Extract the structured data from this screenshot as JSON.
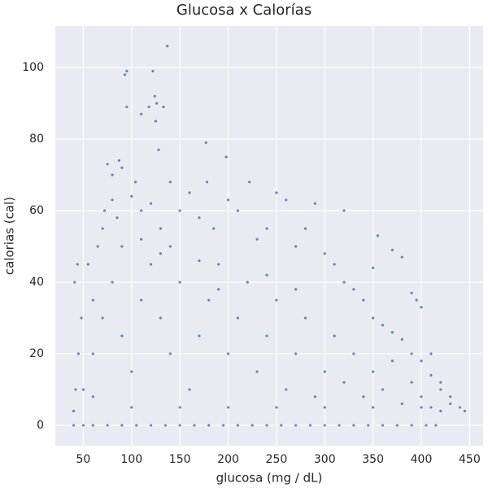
{
  "chart_data": {
    "type": "scatter",
    "title": "Glucosa x Calorías",
    "x_label": "glucosa (mg / dL)",
    "y_label": "calorias (cal)",
    "color": "#4c72b0",
    "grid": true,
    "xlim": [
      21,
      464
    ],
    "ylim": [
      -5.7,
      111.6
    ],
    "xticks": [
      50,
      100,
      150,
      200,
      250,
      300,
      350,
      400,
      450
    ],
    "yticks": [
      0,
      20,
      40,
      60,
      80,
      100
    ],
    "x": [
      40,
      50,
      60,
      75,
      90,
      105,
      120,
      135,
      150,
      165,
      180,
      195,
      210,
      225,
      240,
      255,
      270,
      285,
      300,
      315,
      330,
      345,
      360,
      375,
      390,
      405,
      415,
      93,
      95,
      122,
      137,
      95,
      110,
      118,
      124,
      126,
      133,
      125,
      128,
      177,
      198,
      87,
      90,
      75,
      80,
      104,
      140,
      178,
      222,
      250,
      260,
      290,
      320,
      355,
      370,
      380,
      350,
      390,
      395,
      400,
      410,
      420,
      430,
      445,
      440,
      40,
      42,
      45,
      48,
      41,
      44,
      55,
      60,
      65,
      70,
      72,
      80,
      85,
      100,
      110,
      120,
      130,
      150,
      160,
      170,
      185,
      200,
      210,
      230,
      240,
      270,
      280,
      300,
      310,
      320,
      330,
      340,
      350,
      360,
      370,
      380,
      390,
      400,
      410,
      420,
      430,
      50,
      60,
      70,
      80,
      90,
      100,
      110,
      120,
      130,
      140,
      150,
      160,
      170,
      180,
      190,
      200,
      210,
      220,
      230,
      240,
      250,
      260,
      270,
      280,
      290,
      300,
      310,
      320,
      330,
      340,
      350,
      360,
      370,
      380,
      390,
      400,
      410,
      420,
      100,
      150,
      200,
      250,
      300,
      350,
      400,
      60,
      90,
      130,
      170,
      110,
      140,
      190,
      240,
      270
    ],
    "values": [
      0,
      0,
      0,
      0,
      0,
      0,
      0,
      0,
      0,
      0,
      0,
      0,
      0,
      0,
      0,
      0,
      0,
      0,
      0,
      0,
      0,
      0,
      0,
      0,
      0,
      0,
      0,
      98,
      99,
      99,
      106,
      89,
      87,
      89,
      92,
      90,
      89,
      85,
      77,
      79,
      75,
      74,
      72,
      73,
      70,
      68,
      68,
      68,
      68,
      65,
      63,
      62,
      60,
      53,
      49,
      47,
      44,
      37,
      35,
      33,
      20,
      12,
      8,
      4,
      5,
      4,
      10,
      20,
      30,
      40,
      45,
      45,
      35,
      50,
      55,
      60,
      63,
      58,
      64,
      60,
      62,
      55,
      60,
      65,
      58,
      55,
      63,
      60,
      52,
      55,
      50,
      55,
      48,
      45,
      40,
      38,
      35,
      30,
      28,
      26,
      24,
      20,
      18,
      14,
      10,
      6,
      10,
      20,
      30,
      40,
      25,
      15,
      35,
      45,
      30,
      20,
      40,
      10,
      25,
      35,
      45,
      20,
      30,
      40,
      15,
      25,
      35,
      10,
      20,
      30,
      8,
      15,
      25,
      12,
      20,
      8,
      15,
      10,
      18,
      6,
      12,
      8,
      5,
      4,
      5,
      5,
      5,
      5,
      5,
      5,
      5,
      8,
      50,
      48,
      46,
      52,
      50,
      38,
      42,
      38
    ]
  }
}
